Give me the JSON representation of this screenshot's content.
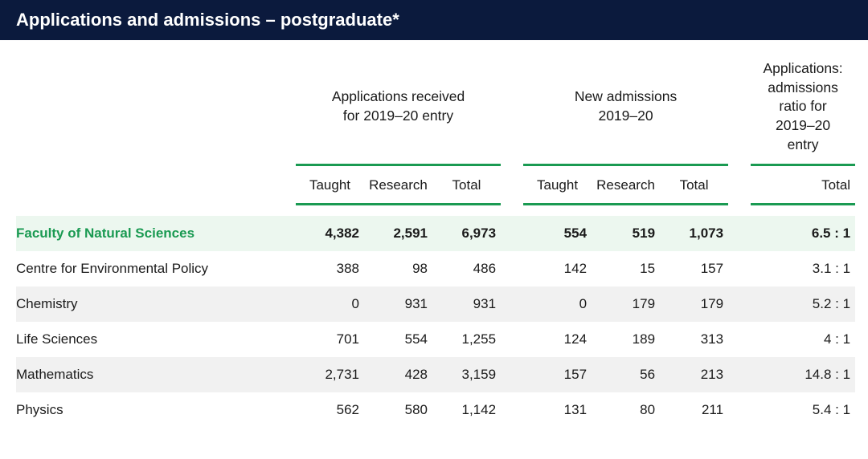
{
  "title": "Applications and admissions – postgraduate*",
  "group_headers": {
    "apps": "Applications received\nfor  2019–20 entry",
    "adm": "New admissions\n2019–20",
    "ratio": "Applications:\nadmissions\nratio for\n2019–20\nentry"
  },
  "sub_headers": {
    "taught": "Taught",
    "research": "Research",
    "total": "Total"
  },
  "colors": {
    "header_bg": "#0b1a3d",
    "accent": "#1a9a52",
    "faculty_bg": "#ecf7ef",
    "shade_bg": "#f1f1f1",
    "text": "#1a1a1a"
  },
  "rows": [
    {
      "name": "Faculty of Natural Sciences",
      "faculty": true,
      "a_t": "4,382",
      "a_r": "2,591",
      "a_tot": "6,973",
      "n_t": "554",
      "n_r": "519",
      "n_tot": "1,073",
      "ratio": "6.5 : 1"
    },
    {
      "name": "Centre for Environmental Policy",
      "a_t": "388",
      "a_r": "98",
      "a_tot": "486",
      "n_t": "142",
      "n_r": "15",
      "n_tot": "157",
      "ratio": "3.1 : 1"
    },
    {
      "name": "Chemistry",
      "shade": true,
      "a_t": "0",
      "a_r": "931",
      "a_tot": "931",
      "n_t": "0",
      "n_r": "179",
      "n_tot": "179",
      "ratio": "5.2 : 1"
    },
    {
      "name": "Life Sciences",
      "a_t": "701",
      "a_r": "554",
      "a_tot": "1,255",
      "n_t": "124",
      "n_r": "189",
      "n_tot": "313",
      "ratio": "4 : 1"
    },
    {
      "name": "Mathematics",
      "shade": true,
      "a_t": "2,731",
      "a_r": "428",
      "a_tot": "3,159",
      "n_t": "157",
      "n_r": "56",
      "n_tot": "213",
      "ratio": "14.8 : 1"
    },
    {
      "name": "Physics",
      "a_t": "562",
      "a_r": "580",
      "a_tot": "1,142",
      "n_t": "131",
      "n_r": "80",
      "n_tot": "211",
      "ratio": "5.4 : 1"
    }
  ]
}
